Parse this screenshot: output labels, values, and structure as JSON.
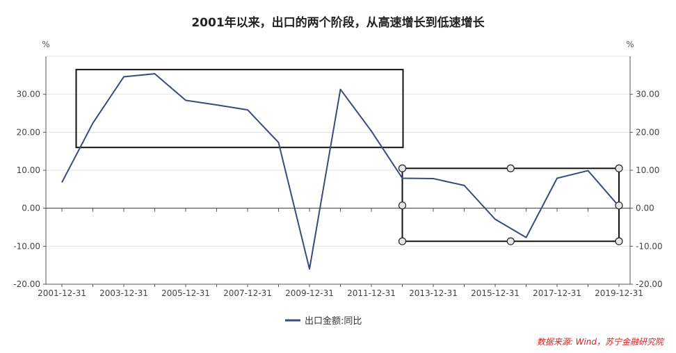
{
  "chart_data": {
    "type": "line",
    "title": "2001年以来，出口的两个阶段，从高速增长到低速增长",
    "left_unit": "%",
    "right_unit": "%",
    "x": [
      "2001-12-31",
      "2002-12-31",
      "2003-12-31",
      "2004-12-31",
      "2005-12-31",
      "2006-12-31",
      "2007-12-31",
      "2008-12-31",
      "2009-12-31",
      "2010-12-31",
      "2011-12-31",
      "2012-12-31",
      "2013-12-31",
      "2014-12-31",
      "2015-12-31",
      "2016-12-31",
      "2017-12-31",
      "2018-12-31",
      "2019-12-31"
    ],
    "x_tick_labels": [
      "2001-12-31",
      "2003-12-31",
      "2005-12-31",
      "2007-12-31",
      "2009-12-31",
      "2011-12-31",
      "2013-12-31",
      "2015-12-31",
      "2017-12-31",
      "2019-12-31"
    ],
    "ylim": [
      -20,
      40
    ],
    "y_tick_labels": [
      "-20.00",
      "-10.00",
      "0.00",
      "10.00",
      "20.00",
      "30.00"
    ],
    "y_ticks": [
      -20,
      -10,
      0,
      10,
      20,
      30
    ],
    "grid": true,
    "legend_position": "bottom-center",
    "series": [
      {
        "name": "出口金额:同比",
        "color": "#3a4a7c",
        "values": [
          6.8,
          22.4,
          34.6,
          35.4,
          28.4,
          27.2,
          25.9,
          17.3,
          -16.0,
          31.3,
          20.3,
          7.9,
          7.8,
          6.0,
          -2.9,
          -7.7,
          7.9,
          9.9,
          0.5
        ]
      }
    ],
    "highlight_boxes": [
      {
        "label": "high-growth-phase",
        "x_from": "2002-12-31",
        "x_to": "2012-12-31",
        "y_from": 16,
        "y_to": 36.5
      },
      {
        "label": "low-growth-phase",
        "x_from": "2012-12-31",
        "x_to": "2019-12-31",
        "y_from": -8.7,
        "y_to": 10.5
      }
    ]
  },
  "source_note": "数据来源: Wind，苏宁金融研究院"
}
